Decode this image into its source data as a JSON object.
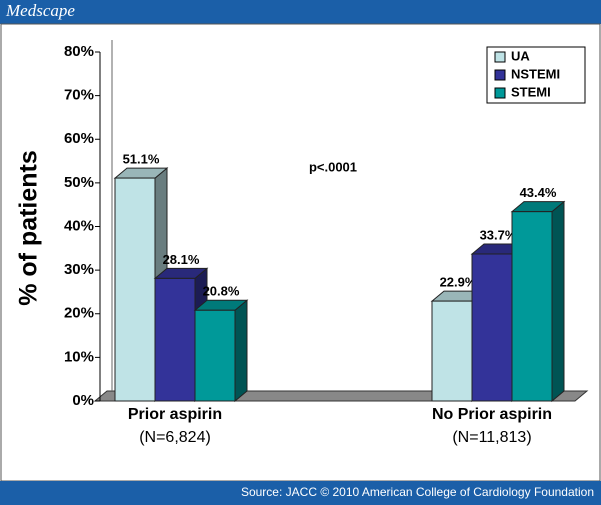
{
  "header": {
    "brand": "Medscape"
  },
  "chart_data": {
    "type": "bar",
    "y_label": "% of patients",
    "annotation": "p<.0001",
    "categories": [
      "Prior aspirin",
      "No Prior aspirin"
    ],
    "category_notes": [
      "(N=6,824)",
      "(N=11,813)"
    ],
    "series": [
      {
        "name": "UA",
        "color": "#bfe3e6",
        "values": [
          51.1,
          22.9
        ],
        "value_labels": [
          "51.1%",
          "22.9%"
        ]
      },
      {
        "name": "NSTEMI",
        "color": "#333399",
        "values": [
          28.1,
          33.7
        ],
        "value_labels": [
          "28.1%",
          "33.7%"
        ]
      },
      {
        "name": "STEMI",
        "color": "#009999",
        "values": [
          20.8,
          43.4
        ],
        "value_labels": [
          "20.8%",
          "43.4%"
        ]
      }
    ],
    "ylim": [
      0,
      80
    ],
    "yticks": [
      {
        "value": 0,
        "label": "0%"
      },
      {
        "value": 10,
        "label": "10%"
      },
      {
        "value": 20,
        "label": "20%"
      },
      {
        "value": 30,
        "label": "30%"
      },
      {
        "value": 40,
        "label": "40%"
      },
      {
        "value": 50,
        "label": "50%"
      },
      {
        "value": 60,
        "label": "60%"
      },
      {
        "value": 70,
        "label": "70%"
      },
      {
        "value": 80,
        "label": "80%"
      }
    ],
    "grid": false,
    "legend": "upper right"
  },
  "footer": {
    "source": "Source: JACC © 2010 American College of Cardiology Foundation"
  }
}
